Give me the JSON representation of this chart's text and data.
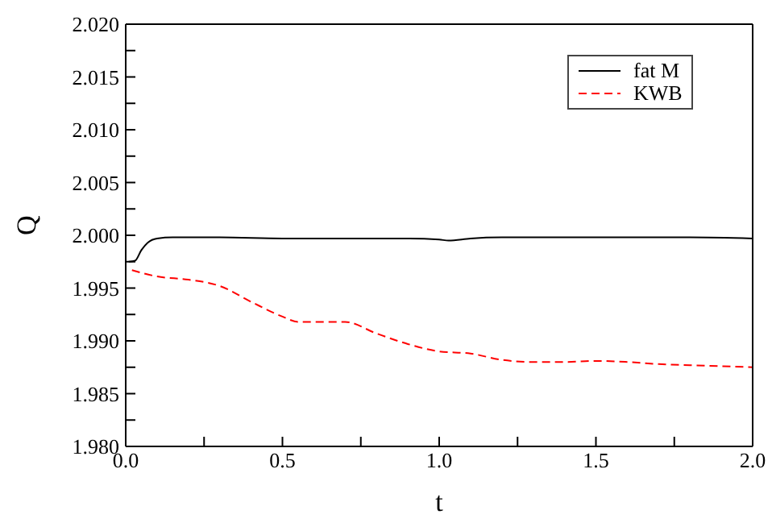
{
  "chart_data": {
    "type": "line",
    "xlabel": "t",
    "ylabel": "Q",
    "xlim": [
      0,
      2
    ],
    "ylim": [
      1.98,
      2.02
    ],
    "xticks": [
      {
        "value": 0,
        "label": "0.0"
      },
      {
        "value": 0.25,
        "label": null
      },
      {
        "value": 0.5,
        "label": "0.5"
      },
      {
        "value": 0.75,
        "label": null
      },
      {
        "value": 1,
        "label": "1.0"
      },
      {
        "value": 1.25,
        "label": null
      },
      {
        "value": 1.5,
        "label": "1.5"
      },
      {
        "value": 1.75,
        "label": null
      },
      {
        "value": 2,
        "label": "2.0"
      }
    ],
    "yticks": [
      {
        "value": 1.98,
        "label": "1.980"
      },
      {
        "value": 1.9825,
        "label": null
      },
      {
        "value": 1.985,
        "label": "1.985"
      },
      {
        "value": 1.9875,
        "label": null
      },
      {
        "value": 1.99,
        "label": "1.990"
      },
      {
        "value": 1.9925,
        "label": null
      },
      {
        "value": 1.995,
        "label": "1.995"
      },
      {
        "value": 1.9975,
        "label": null
      },
      {
        "value": 2,
        "label": "2.000"
      },
      {
        "value": 2.0025,
        "label": null
      },
      {
        "value": 2.005,
        "label": "2.005"
      },
      {
        "value": 2.0075,
        "label": null
      },
      {
        "value": 2.01,
        "label": "2.010"
      },
      {
        "value": 2.0125,
        "label": null
      },
      {
        "value": 2.015,
        "label": "2.015"
      },
      {
        "value": 2.0175,
        "label": null
      },
      {
        "value": 2.02,
        "label": "2.020"
      }
    ],
    "legend": "top right",
    "series": [
      {
        "name": "fat M",
        "color": "#000000",
        "line_style": "solid",
        "x": [
          0.01,
          0.03,
          0.05,
          0.07,
          0.1,
          0.15,
          0.3,
          0.5,
          0.7,
          0.9,
          1.0,
          1.03,
          1.1,
          1.2,
          1.4,
          1.6,
          1.8,
          2.0
        ],
        "values": [
          1.9975,
          1.9976,
          1.9986,
          1.9993,
          1.9997,
          1.9998,
          1.9998,
          1.9997,
          1.9997,
          1.9997,
          1.9996,
          1.9995,
          1.9997,
          1.9998,
          1.9998,
          1.9998,
          1.9998,
          1.9997
        ]
      },
      {
        "name": "KWB",
        "color": "#ff0000",
        "line_style": "dashed",
        "x": [
          0.02,
          0.1,
          0.2,
          0.3,
          0.4,
          0.5,
          0.55,
          0.6,
          0.7,
          0.8,
          0.9,
          1.0,
          1.1,
          1.2,
          1.3,
          1.4,
          1.5,
          1.6,
          1.7,
          1.8,
          1.9,
          2.0
        ],
        "values": [
          1.9967,
          1.9961,
          1.9958,
          1.9952,
          1.9937,
          1.9923,
          1.9918,
          1.9918,
          1.9918,
          1.9907,
          1.9897,
          1.989,
          1.9888,
          1.9882,
          1.988,
          1.988,
          1.9881,
          1.988,
          1.9878,
          1.9877,
          1.9876,
          1.9875
        ]
      }
    ]
  }
}
